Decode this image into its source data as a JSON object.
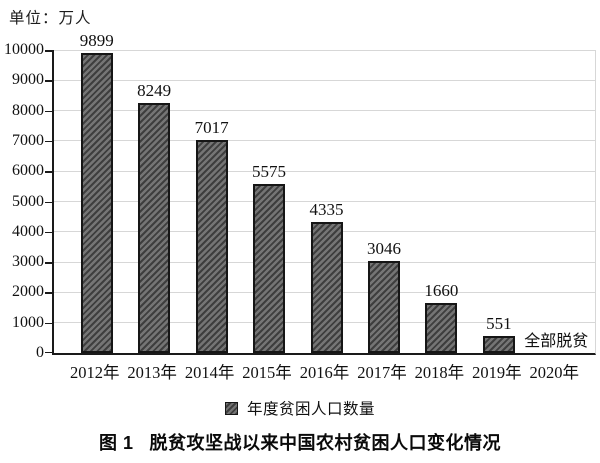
{
  "unit_label": "单位：万人",
  "chart_data": {
    "type": "bar",
    "title": "脱贫攻坚战以来中国农村贫困人口变化情况",
    "categories": [
      "2012年",
      "2013年",
      "2014年",
      "2015年",
      "2016年",
      "2017年",
      "2018年",
      "2019年",
      "2020年"
    ],
    "values": [
      9899,
      8249,
      7017,
      5575,
      4335,
      3046,
      1660,
      551,
      0
    ],
    "bar_labels": [
      "9899",
      "8249",
      "7017",
      "5575",
      "4335",
      "3046",
      "1660",
      "551",
      ""
    ],
    "annotation": "全部脱贫",
    "annotation_category": "2020年",
    "ylabel": "万人",
    "ylim": [
      0,
      10000
    ],
    "ytick_step": 1000,
    "yticks": [
      10000,
      9000,
      8000,
      7000,
      6000,
      5000,
      4000,
      3000,
      2000,
      1000,
      0
    ],
    "grid": "horizontal",
    "legend_position": "bottom",
    "legend": [
      {
        "label": "年度贫困人口数量",
        "swatch": "hatched-gray-square"
      }
    ],
    "colors": {
      "bar_fill": "#757575",
      "bar_hatch": "#3e3e3e",
      "bar_border": "#161616",
      "grid": "#d7d7d7",
      "axis": "#1a1a1a",
      "text": "#111111"
    }
  },
  "caption": {
    "figure_label": "图 1",
    "figure_text": "脱贫攻坚战以来中国农村贫困人口变化情况"
  }
}
